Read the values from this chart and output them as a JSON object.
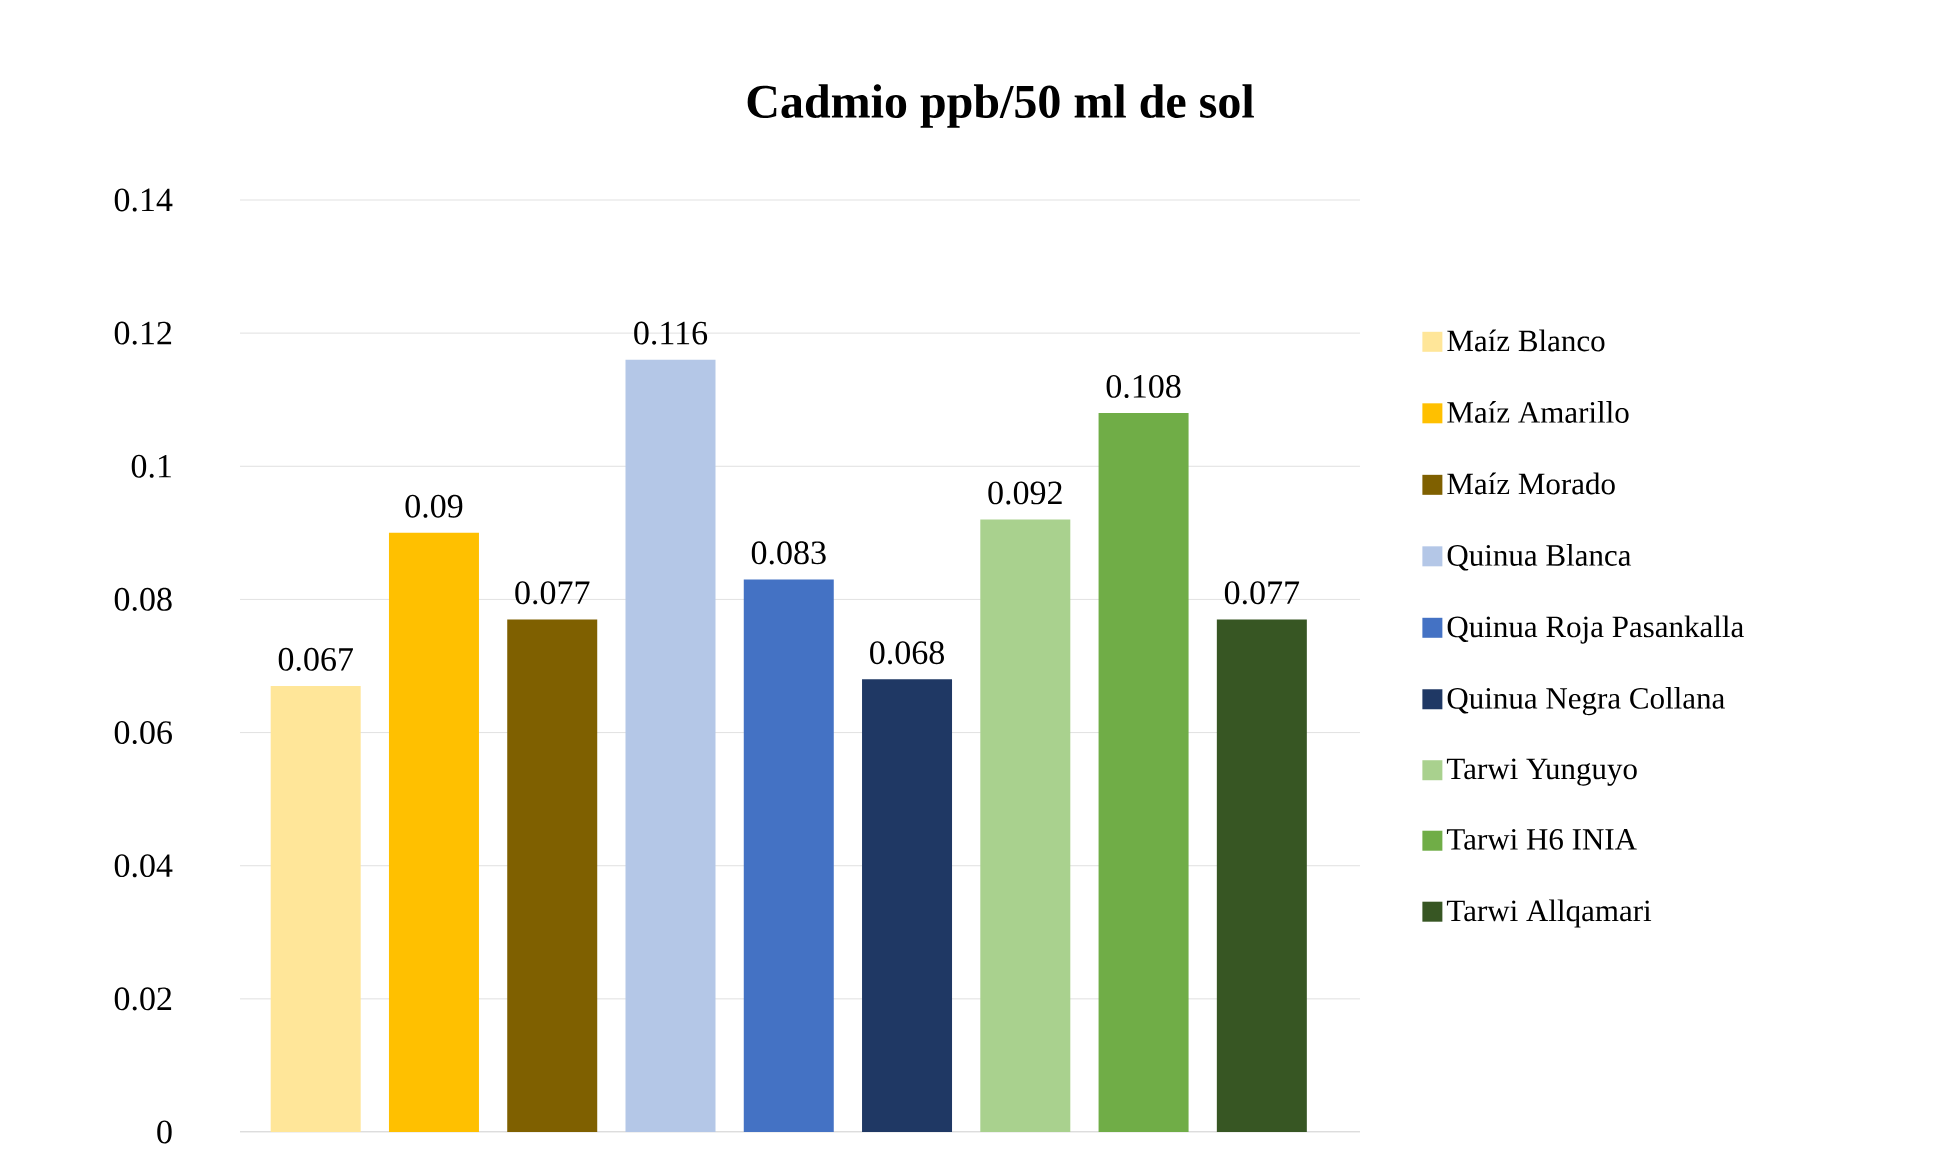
{
  "chart_data": {
    "type": "bar",
    "title": "Cadmio ppb/50 ml de sol",
    "categories": [
      null
    ],
    "series": [
      {
        "name": "Maíz Blanco",
        "color": "#ffe699",
        "values": [
          0.067
        ]
      },
      {
        "name": "Maíz Amarillo",
        "color": "#ffc000",
        "values": [
          0.09
        ]
      },
      {
        "name": "Maíz Morado",
        "color": "#7f6000",
        "values": [
          0.077
        ]
      },
      {
        "name": "Quinua Blanca",
        "color": "#b4c7e7",
        "values": [
          0.116
        ]
      },
      {
        "name": "Quinua Roja Pasankalla",
        "color": "#4472c4",
        "values": [
          0.083
        ]
      },
      {
        "name": "Quinua Negra Collana",
        "color": "#1f3864",
        "values": [
          0.068
        ]
      },
      {
        "name": "Tarwi Yunguyo",
        "color": "#a9d18e",
        "values": [
          0.092
        ]
      },
      {
        "name": "Tarwi H6 INIA",
        "color": "#70ad47",
        "values": [
          0.108
        ]
      },
      {
        "name": "Tarwi Allqamari",
        "color": "#375623",
        "values": [
          0.077
        ]
      }
    ],
    "ylim": [
      0,
      0.14
    ],
    "yticks": [
      0,
      0.02,
      0.04,
      0.06,
      0.08,
      0.1,
      0.12,
      0.14
    ],
    "grid": "y",
    "legend": "right",
    "data_labels": true
  }
}
